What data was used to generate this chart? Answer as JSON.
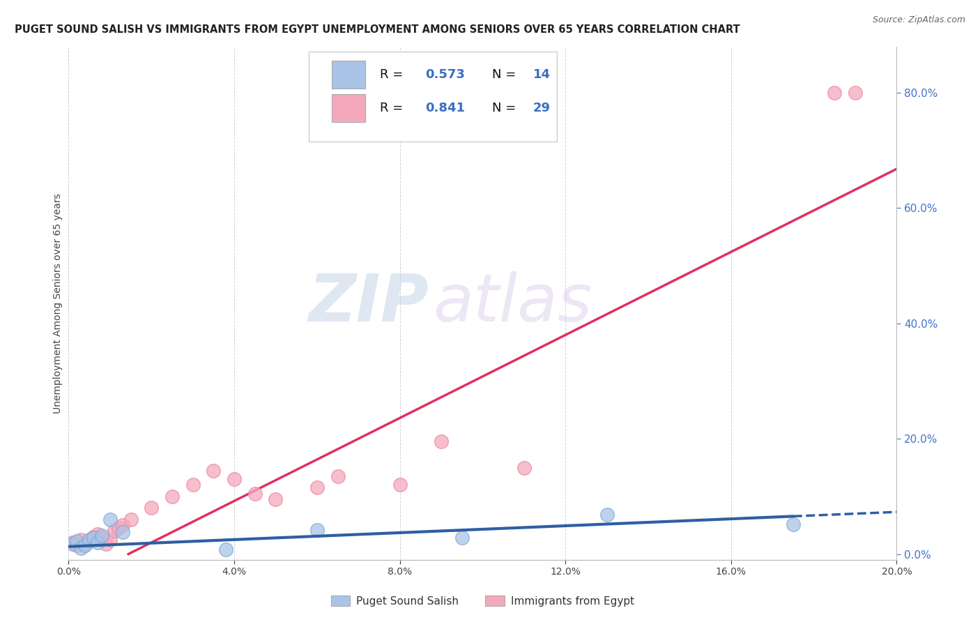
{
  "title": "PUGET SOUND SALISH VS IMMIGRANTS FROM EGYPT UNEMPLOYMENT AMONG SENIORS OVER 65 YEARS CORRELATION CHART",
  "source": "Source: ZipAtlas.com",
  "ylabel": "Unemployment Among Seniors over 65 years",
  "xlim": [
    0.0,
    0.2
  ],
  "ylim": [
    -0.01,
    0.88
  ],
  "xticks": [
    0.0,
    0.04,
    0.08,
    0.12,
    0.16,
    0.2
  ],
  "yticks": [
    0.0,
    0.2,
    0.4,
    0.6,
    0.8
  ],
  "background_color": "#ffffff",
  "watermark_zip": "ZIP",
  "watermark_atlas": "atlas",
  "series1_label": "Puget Sound Salish",
  "series2_label": "Immigrants from Egypt",
  "series1_color": "#aac4e8",
  "series2_color": "#f5a8bc",
  "series1_line_color": "#2e5fa3",
  "series2_line_color": "#e03060",
  "series1_edge_color": "#7aaad0",
  "series2_edge_color": "#e888a8",
  "puget_x": [
    0.001,
    0.002,
    0.003,
    0.004,
    0.005,
    0.006,
    0.007,
    0.008,
    0.01,
    0.013,
    0.038,
    0.06,
    0.095,
    0.13,
    0.175
  ],
  "puget_y": [
    0.018,
    0.022,
    0.01,
    0.015,
    0.025,
    0.028,
    0.02,
    0.032,
    0.06,
    0.038,
    0.008,
    0.042,
    0.028,
    0.068,
    0.052
  ],
  "egypt_x": [
    0.001,
    0.002,
    0.003,
    0.004,
    0.005,
    0.006,
    0.007,
    0.008,
    0.009,
    0.01,
    0.011,
    0.012,
    0.013,
    0.015,
    0.02,
    0.025,
    0.03,
    0.035,
    0.04,
    0.045,
    0.05,
    0.06,
    0.065,
    0.08,
    0.09,
    0.11,
    0.185,
    0.19
  ],
  "egypt_y": [
    0.02,
    0.015,
    0.025,
    0.018,
    0.022,
    0.03,
    0.035,
    0.028,
    0.018,
    0.025,
    0.04,
    0.045,
    0.05,
    0.06,
    0.08,
    0.1,
    0.12,
    0.145,
    0.13,
    0.105,
    0.095,
    0.115,
    0.135,
    0.12,
    0.195,
    0.15,
    0.8,
    0.8
  ],
  "blue_line_x0": 0.0,
  "blue_line_x1": 0.175,
  "blue_line_x2": 0.2,
  "blue_line_slope": 0.3,
  "blue_line_intercept": 0.013,
  "red_line_slope": 3.6,
  "red_line_intercept": -0.052,
  "title_fontsize": 10.5,
  "source_fontsize": 9,
  "label_fontsize": 10,
  "tick_fontsize": 10,
  "legend_fontsize": 13
}
